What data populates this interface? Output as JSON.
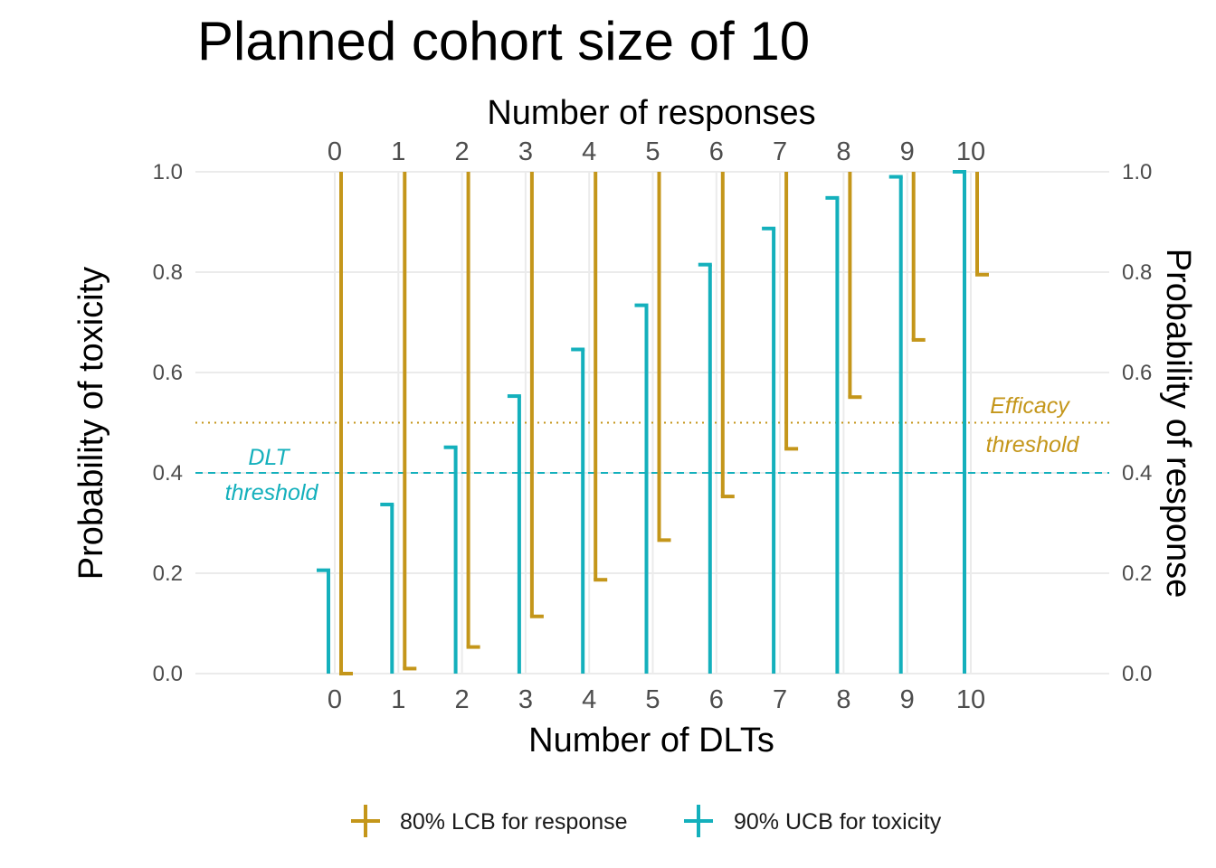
{
  "chart_data": {
    "type": "bar",
    "title": "Planned cohort size of  10",
    "x_bottom_label": "Number of DLTs",
    "x_top_label": "Number of responses",
    "y_left_label": "Probability of toxicity",
    "y_right_label": "Probability of response",
    "categories": [
      "0",
      "1",
      "2",
      "3",
      "4",
      "5",
      "6",
      "7",
      "8",
      "9",
      "10"
    ],
    "y_ticks": [
      "0.0",
      "0.2",
      "0.4",
      "0.6",
      "0.8",
      "1.0"
    ],
    "ylim": [
      0,
      1
    ],
    "grid": true,
    "legend_position": "bottom",
    "series": [
      {
        "name": "80% LCB for response",
        "color": "#C4961A",
        "values": [
          0.0,
          0.01,
          0.053,
          0.114,
          0.187,
          0.266,
          0.353,
          0.448,
          0.551,
          0.665,
          0.795
        ]
      },
      {
        "name": "90% UCB for toxicity",
        "color": "#14B0BC",
        "values": [
          0.206,
          0.337,
          0.451,
          0.553,
          0.646,
          0.734,
          0.815,
          0.887,
          0.948,
          0.99,
          1.0
        ]
      }
    ],
    "thresholds": [
      {
        "name": "DLT threshold",
        "line1": "DLT",
        "line2": "threshold",
        "value": 0.4,
        "color": "#14B0BC",
        "style": "dashed"
      },
      {
        "name": "Efficacy threshold",
        "line1": "Efficacy",
        "line2": "threshold",
        "value": 0.5,
        "color": "#C4961A",
        "style": "dotted"
      }
    ]
  }
}
